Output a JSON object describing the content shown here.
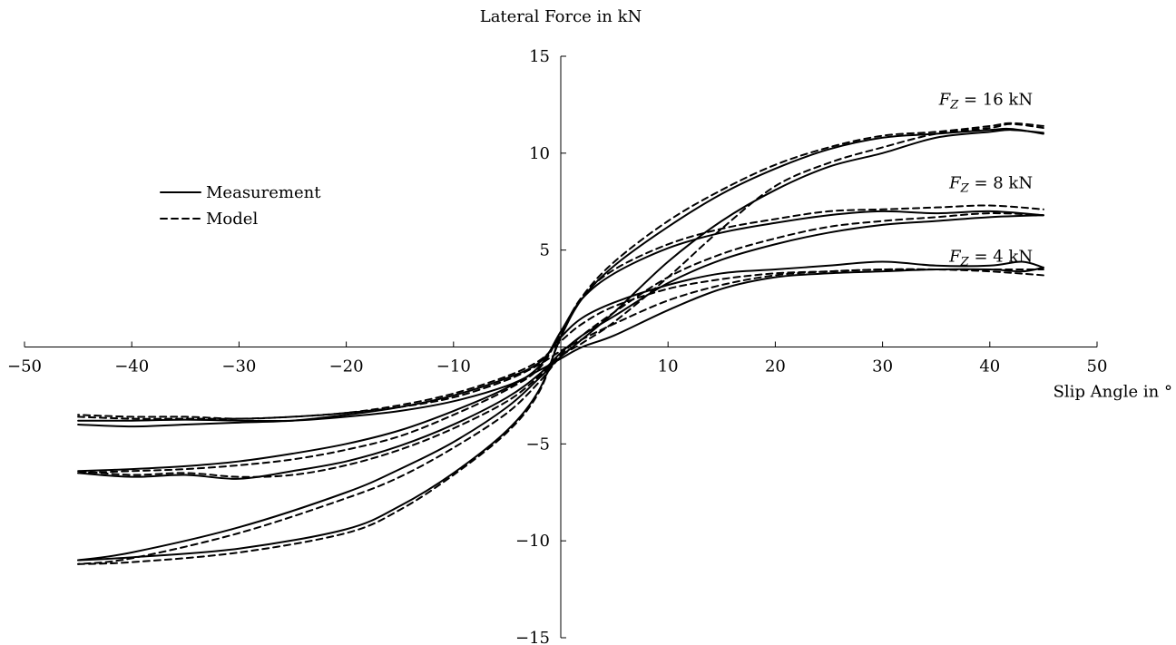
{
  "chart_data": {
    "type": "line",
    "title": "",
    "xlabel": "Slip Angle in °",
    "ylabel": "Lateral Force in kN",
    "xlim": [
      -50,
      50
    ],
    "ylim": [
      -15,
      15
    ],
    "x_ticks": [
      -50,
      -40,
      -30,
      -20,
      -10,
      10,
      20,
      30,
      40,
      50
    ],
    "x_tick_labels": [
      "−50",
      "−40",
      "−30",
      "−20",
      "−10",
      "10",
      "20",
      "30",
      "40",
      "50"
    ],
    "y_ticks": [
      -15,
      -10,
      -5,
      5,
      10,
      15
    ],
    "y_tick_labels": [
      "−15",
      "−10",
      "−5",
      "5",
      "10",
      "15"
    ],
    "grid": false,
    "legend": {
      "position": "upper-left",
      "entries": [
        {
          "label": "Measurement",
          "style": "solid"
        },
        {
          "label": "Model",
          "style": "dashed"
        }
      ]
    },
    "annotations": [
      {
        "var": "F",
        "sub": "Z",
        "text": " = 16 kN",
        "x": 44,
        "y": 12.5
      },
      {
        "var": "F",
        "sub": "Z",
        "text": " = 8 kN",
        "x": 44,
        "y": 8.2
      },
      {
        "var": "F",
        "sub": "Z",
        "text": " = 4 kN",
        "x": 44,
        "y": 4.4
      }
    ],
    "series": [
      {
        "name": "Measurement",
        "style": "solid",
        "group": "16 kN",
        "branch": "upper",
        "x": [
          -45,
          -40,
          -30,
          -20,
          -15,
          -10,
          -5,
          -2,
          0,
          2,
          5,
          10,
          15,
          20,
          25,
          30,
          35,
          40,
          42,
          45
        ],
        "y": [
          -11,
          -10.85,
          -10.4,
          -9.4,
          -8.2,
          -6.5,
          -4.3,
          -2.2,
          0.5,
          2.5,
          4.2,
          6.2,
          7.9,
          9.2,
          10.2,
          10.8,
          11.0,
          11.2,
          11.25,
          11.0
        ]
      },
      {
        "name": "Measurement",
        "style": "solid",
        "group": "16 kN",
        "branch": "lower",
        "x": [
          45,
          42,
          40,
          35,
          30,
          25,
          20,
          15,
          10,
          5,
          2,
          0,
          -2,
          -5,
          -10,
          -15,
          -20,
          -30,
          -40,
          -45
        ],
        "y": [
          11.05,
          11.2,
          11.1,
          10.8,
          10.0,
          9.3,
          8.1,
          6.5,
          4.4,
          1.8,
          0.4,
          -0.5,
          -1.6,
          -3.1,
          -4.9,
          -6.3,
          -7.5,
          -9.3,
          -10.6,
          -11.0
        ]
      },
      {
        "name": "Model",
        "style": "dashed",
        "group": "16 kN",
        "branch": "upper",
        "x": [
          -45,
          -40,
          -30,
          -20,
          -15,
          -10,
          -5,
          -2,
          0,
          2,
          5,
          10,
          15,
          20,
          25,
          30,
          35,
          40,
          42,
          45
        ],
        "y": [
          -11.2,
          -11.1,
          -10.6,
          -9.6,
          -8.4,
          -6.6,
          -4.4,
          -2.3,
          0.6,
          2.6,
          4.4,
          6.5,
          8.1,
          9.4,
          10.3,
          10.9,
          11.1,
          11.4,
          11.55,
          11.4
        ]
      },
      {
        "name": "Model",
        "style": "dashed",
        "group": "16 kN",
        "branch": "lower",
        "x": [
          45,
          42,
          40,
          35,
          30,
          25,
          20,
          15,
          10,
          5,
          2,
          0,
          -2,
          -5,
          -10,
          -15,
          -20,
          -30,
          -40,
          -45
        ],
        "y": [
          11.3,
          11.5,
          11.3,
          11.0,
          10.3,
          9.5,
          8.3,
          6.1,
          3.6,
          1.3,
          0.2,
          -0.5,
          -1.8,
          -3.4,
          -5.2,
          -6.7,
          -7.8,
          -9.6,
          -10.9,
          -11.2
        ]
      },
      {
        "name": "Measurement",
        "style": "solid",
        "group": "8 kN",
        "branch": "upper",
        "x": [
          -45,
          -40,
          -35,
          -30,
          -25,
          -20,
          -15,
          -10,
          -5,
          -2,
          0,
          2,
          5,
          10,
          15,
          20,
          25,
          30,
          35,
          40,
          45
        ],
        "y": [
          -6.4,
          -6.3,
          -6.15,
          -5.9,
          -5.5,
          -5.0,
          -4.3,
          -3.3,
          -2.1,
          -1.0,
          0.8,
          2.5,
          3.8,
          5.1,
          5.9,
          6.4,
          6.8,
          7.0,
          6.9,
          7.0,
          6.8
        ]
      },
      {
        "name": "Measurement",
        "style": "solid",
        "group": "8 kN",
        "branch": "lower",
        "x": [
          45,
          40,
          35,
          30,
          25,
          20,
          15,
          10,
          5,
          2,
          0,
          -2,
          -5,
          -10,
          -15,
          -20,
          -25,
          -30,
          -35,
          -40,
          -45
        ],
        "y": [
          6.8,
          6.7,
          6.5,
          6.3,
          5.9,
          5.3,
          4.5,
          3.3,
          1.6,
          0.6,
          -0.3,
          -1.4,
          -2.6,
          -4.0,
          -5.1,
          -5.9,
          -6.4,
          -6.8,
          -6.6,
          -6.7,
          -6.5
        ]
      },
      {
        "name": "Model",
        "style": "dashed",
        "group": "8 kN",
        "branch": "upper",
        "x": [
          -45,
          -40,
          -35,
          -30,
          -25,
          -20,
          -15,
          -10,
          -5,
          -2,
          0,
          2,
          5,
          10,
          15,
          20,
          25,
          30,
          35,
          40,
          45
        ],
        "y": [
          -6.5,
          -6.4,
          -6.3,
          -6.1,
          -5.8,
          -5.3,
          -4.6,
          -3.5,
          -2.2,
          -1.1,
          0.7,
          2.6,
          4.0,
          5.3,
          6.1,
          6.6,
          7.0,
          7.1,
          7.2,
          7.3,
          7.1
        ]
      },
      {
        "name": "Model",
        "style": "dashed",
        "group": "8 kN",
        "branch": "lower",
        "x": [
          45,
          40,
          35,
          30,
          25,
          20,
          15,
          10,
          5,
          2,
          0,
          -2,
          -5,
          -10,
          -15,
          -20,
          -25,
          -30,
          -35,
          -40,
          -45
        ],
        "y": [
          6.8,
          6.9,
          6.7,
          6.5,
          6.2,
          5.6,
          4.8,
          3.6,
          1.8,
          0.6,
          -0.4,
          -1.5,
          -2.8,
          -4.2,
          -5.3,
          -6.1,
          -6.6,
          -6.7,
          -6.5,
          -6.6,
          -6.4
        ]
      },
      {
        "name": "Measurement",
        "style": "solid",
        "group": "4 kN",
        "branch": "upper",
        "x": [
          -45,
          -40,
          -35,
          -30,
          -25,
          -20,
          -15,
          -10,
          -5,
          -2,
          0,
          2,
          5,
          10,
          15,
          20,
          25,
          30,
          35,
          40,
          43,
          45
        ],
        "y": [
          -4.0,
          -4.1,
          -4.0,
          -3.9,
          -3.8,
          -3.5,
          -3.1,
          -2.5,
          -1.6,
          -0.8,
          0.5,
          1.5,
          2.3,
          3.2,
          3.8,
          4.0,
          4.2,
          4.4,
          4.2,
          4.2,
          4.4,
          4.1
        ]
      },
      {
        "name": "Measurement",
        "style": "solid",
        "group": "4 kN",
        "branch": "lower",
        "x": [
          45,
          43,
          40,
          35,
          30,
          25,
          20,
          15,
          10,
          5,
          2,
          0,
          -2,
          -5,
          -10,
          -15,
          -20,
          -25,
          -30,
          -35,
          -40,
          -45
        ],
        "y": [
          4.1,
          3.9,
          4.0,
          4.0,
          3.9,
          3.8,
          3.6,
          3.0,
          1.9,
          0.6,
          0.0,
          -0.6,
          -1.2,
          -2.0,
          -2.8,
          -3.3,
          -3.6,
          -3.8,
          -3.8,
          -3.75,
          -3.8,
          -3.8
        ]
      },
      {
        "name": "Model",
        "style": "dashed",
        "group": "4 kN",
        "branch": "upper",
        "x": [
          -45,
          -40,
          -35,
          -30,
          -25,
          -20,
          -15,
          -10,
          -5,
          -2,
          0,
          2,
          5,
          10,
          15,
          20,
          25,
          30,
          35,
          40,
          45
        ],
        "y": [
          -3.6,
          -3.7,
          -3.7,
          -3.7,
          -3.6,
          -3.4,
          -3.0,
          -2.4,
          -1.5,
          -0.7,
          0.3,
          1.2,
          2.1,
          3.0,
          3.5,
          3.8,
          3.9,
          4.0,
          4.0,
          4.0,
          4.0
        ]
      },
      {
        "name": "Model",
        "style": "dashed",
        "group": "4 kN",
        "branch": "lower",
        "x": [
          45,
          40,
          35,
          30,
          25,
          20,
          15,
          10,
          5,
          2,
          0,
          -2,
          -5,
          -10,
          -15,
          -20,
          -25,
          -30,
          -35,
          -40,
          -45
        ],
        "y": [
          3.7,
          3.9,
          4.0,
          4.0,
          3.9,
          3.7,
          3.2,
          2.4,
          1.2,
          0.4,
          -0.2,
          -0.9,
          -1.7,
          -2.6,
          -3.1,
          -3.4,
          -3.6,
          -3.7,
          -3.6,
          -3.6,
          -3.5
        ]
      }
    ]
  }
}
